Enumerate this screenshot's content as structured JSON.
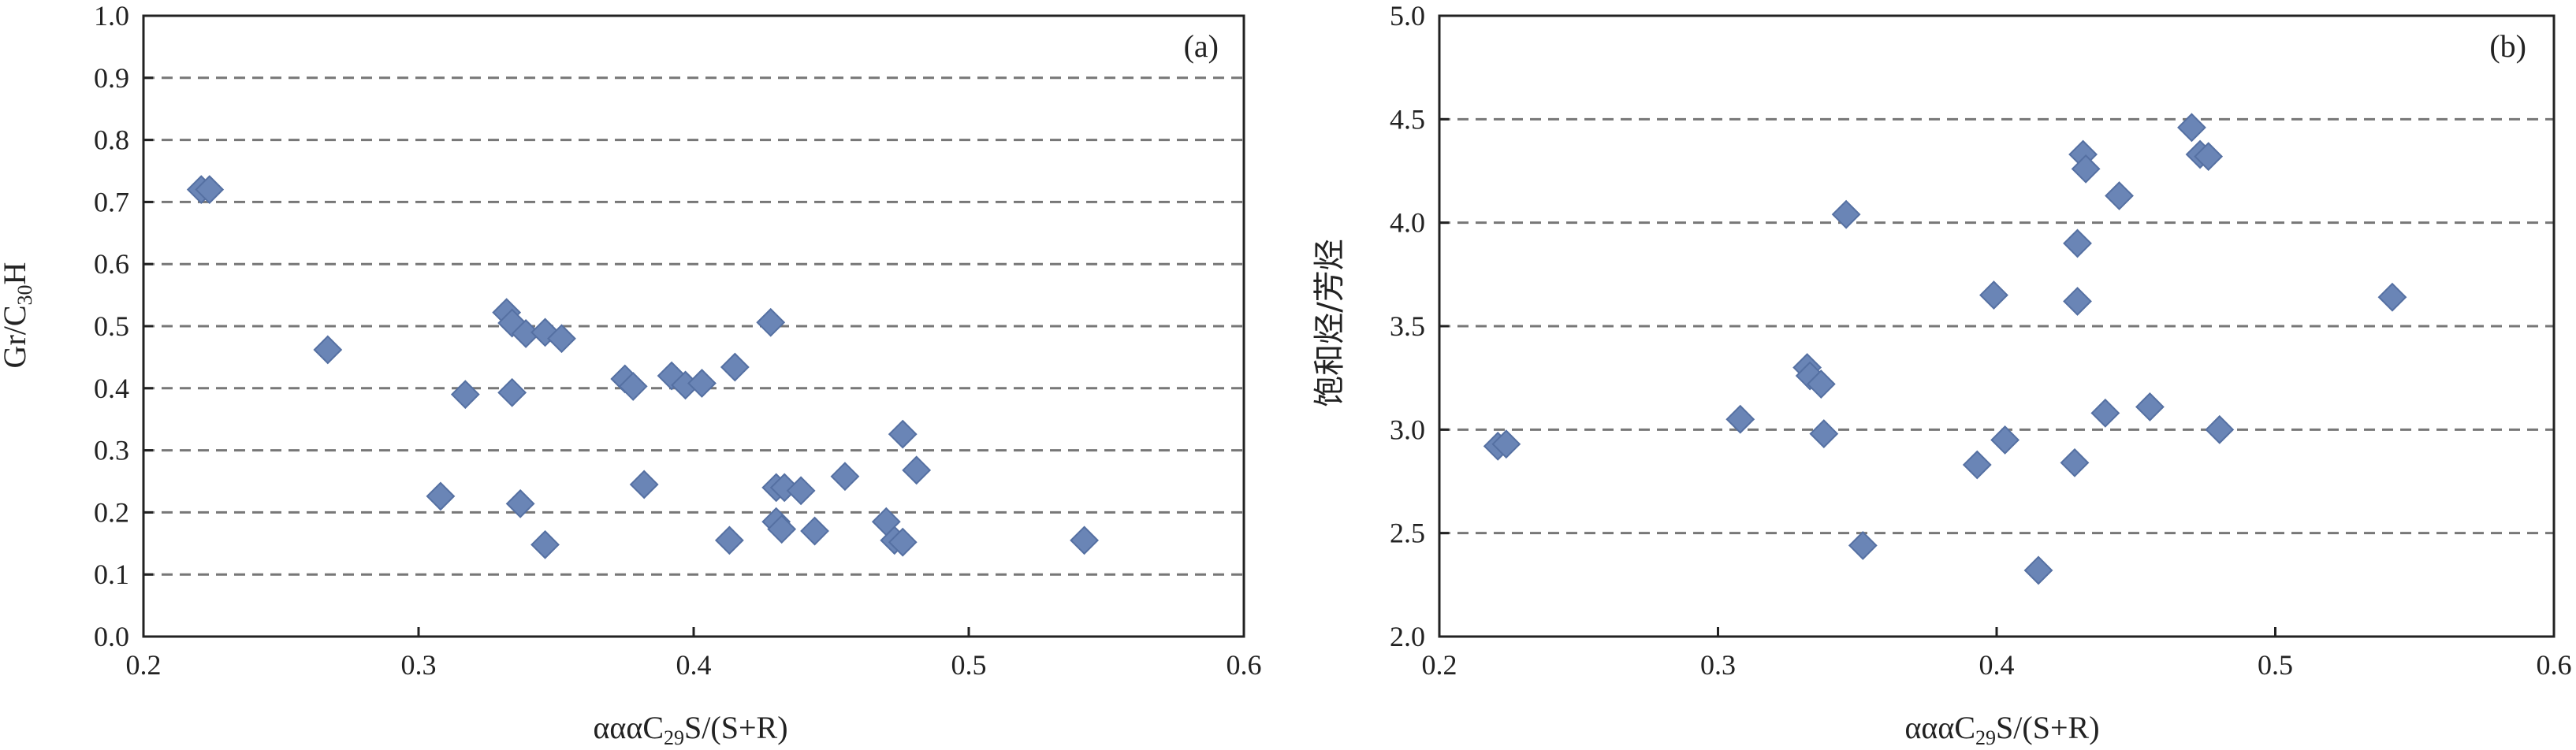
{
  "colors": {
    "marker": "#6a85b6",
    "marker_stroke": "#5570a2",
    "grid": "#777777",
    "frame": "#222222"
  },
  "chart_data": [
    {
      "type": "scatter",
      "panel_label": "(a)",
      "xlabel_parts": [
        "αααC",
        "29",
        "S/(S+R)"
      ],
      "ylabel_parts": [
        "Gr/C",
        "30",
        "H"
      ],
      "xlim": [
        0.2,
        0.6
      ],
      "ylim": [
        0.0,
        1.0
      ],
      "xticks": [
        "0.2",
        "0.3",
        "0.4",
        "0.5",
        "0.6"
      ],
      "yticks": [
        "0.0",
        "0.1",
        "0.2",
        "0.3",
        "0.4",
        "0.5",
        "0.6",
        "0.7",
        "0.8",
        "0.9",
        "1.0"
      ],
      "grid": "horizontal dashed",
      "marker": "diamond",
      "points": [
        {
          "x": 0.221,
          "y": 0.72
        },
        {
          "x": 0.224,
          "y": 0.72
        },
        {
          "x": 0.267,
          "y": 0.462
        },
        {
          "x": 0.308,
          "y": 0.226
        },
        {
          "x": 0.317,
          "y": 0.39
        },
        {
          "x": 0.332,
          "y": 0.522
        },
        {
          "x": 0.334,
          "y": 0.505
        },
        {
          "x": 0.334,
          "y": 0.393
        },
        {
          "x": 0.337,
          "y": 0.214
        },
        {
          "x": 0.339,
          "y": 0.488
        },
        {
          "x": 0.346,
          "y": 0.148
        },
        {
          "x": 0.346,
          "y": 0.49
        },
        {
          "x": 0.352,
          "y": 0.48
        },
        {
          "x": 0.375,
          "y": 0.415
        },
        {
          "x": 0.378,
          "y": 0.403
        },
        {
          "x": 0.382,
          "y": 0.245
        },
        {
          "x": 0.392,
          "y": 0.42
        },
        {
          "x": 0.397,
          "y": 0.405
        },
        {
          "x": 0.403,
          "y": 0.408
        },
        {
          "x": 0.413,
          "y": 0.155
        },
        {
          "x": 0.415,
          "y": 0.434
        },
        {
          "x": 0.428,
          "y": 0.506
        },
        {
          "x": 0.43,
          "y": 0.24
        },
        {
          "x": 0.43,
          "y": 0.185
        },
        {
          "x": 0.432,
          "y": 0.173
        },
        {
          "x": 0.433,
          "y": 0.24
        },
        {
          "x": 0.439,
          "y": 0.235
        },
        {
          "x": 0.444,
          "y": 0.17
        },
        {
          "x": 0.455,
          "y": 0.258
        },
        {
          "x": 0.47,
          "y": 0.185
        },
        {
          "x": 0.473,
          "y": 0.155
        },
        {
          "x": 0.476,
          "y": 0.326
        },
        {
          "x": 0.476,
          "y": 0.152
        },
        {
          "x": 0.481,
          "y": 0.268
        },
        {
          "x": 0.542,
          "y": 0.155
        }
      ]
    },
    {
      "type": "scatter",
      "panel_label": "(b)",
      "xlabel_parts": [
        "αααC",
        "29",
        "S/(S+R)"
      ],
      "ylabel": "饱和烃/芳烃",
      "xlim": [
        0.2,
        0.6
      ],
      "ylim": [
        2.0,
        5.0
      ],
      "xticks": [
        "0.2",
        "0.3",
        "0.4",
        "0.5",
        "0.6"
      ],
      "yticks": [
        "2.0",
        "2.5",
        "3.0",
        "3.5",
        "4.0",
        "4.5",
        "5.0"
      ],
      "grid": "horizontal dashed",
      "marker": "diamond",
      "points": [
        {
          "x": 0.221,
          "y": 2.92
        },
        {
          "x": 0.224,
          "y": 2.93
        },
        {
          "x": 0.308,
          "y": 3.05
        },
        {
          "x": 0.332,
          "y": 3.3
        },
        {
          "x": 0.333,
          "y": 3.26
        },
        {
          "x": 0.337,
          "y": 3.22
        },
        {
          "x": 0.338,
          "y": 2.98
        },
        {
          "x": 0.346,
          "y": 4.04
        },
        {
          "x": 0.352,
          "y": 2.44
        },
        {
          "x": 0.393,
          "y": 2.83
        },
        {
          "x": 0.399,
          "y": 3.65
        },
        {
          "x": 0.403,
          "y": 2.95
        },
        {
          "x": 0.415,
          "y": 2.32
        },
        {
          "x": 0.428,
          "y": 2.84
        },
        {
          "x": 0.429,
          "y": 3.62
        },
        {
          "x": 0.429,
          "y": 3.9
        },
        {
          "x": 0.431,
          "y": 4.33
        },
        {
          "x": 0.432,
          "y": 4.26
        },
        {
          "x": 0.439,
          "y": 3.08
        },
        {
          "x": 0.444,
          "y": 4.13
        },
        {
          "x": 0.455,
          "y": 3.11
        },
        {
          "x": 0.47,
          "y": 4.46
        },
        {
          "x": 0.473,
          "y": 4.33
        },
        {
          "x": 0.476,
          "y": 4.32
        },
        {
          "x": 0.48,
          "y": 3.0
        },
        {
          "x": 0.542,
          "y": 3.64
        }
      ]
    }
  ]
}
